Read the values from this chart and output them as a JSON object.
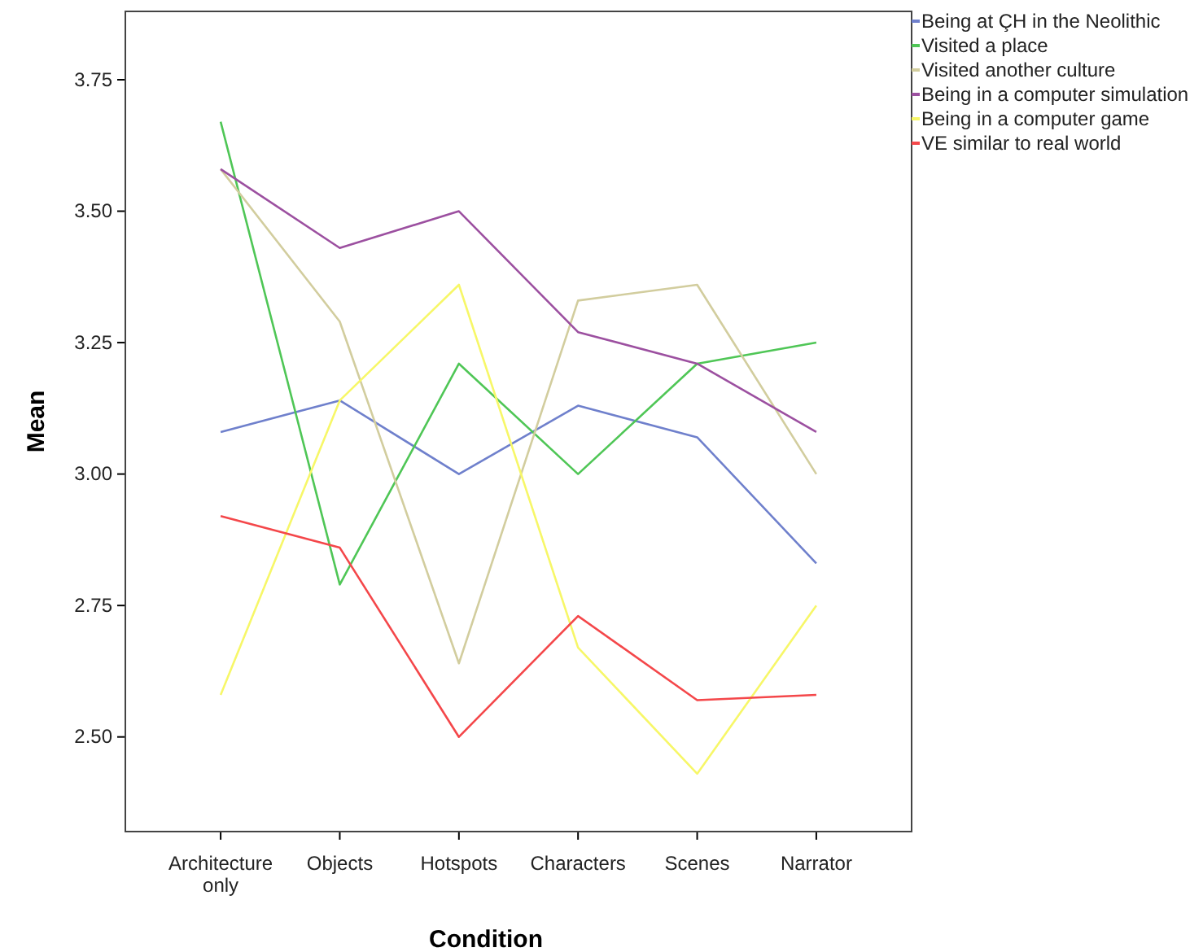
{
  "chart_data": {
    "type": "line",
    "xlabel": "Condition",
    "ylabel": "Mean",
    "categories": [
      "Architecture only",
      "Objects",
      "Hotspots",
      "Characters",
      "Scenes",
      "Narrator"
    ],
    "ylim": [
      2.32,
      3.88
    ],
    "yticks": [
      {
        "value": 2.5,
        "label": "2.50"
      },
      {
        "value": 2.75,
        "label": "2.75"
      },
      {
        "value": 3.0,
        "label": "3.00"
      },
      {
        "value": 3.25,
        "label": "3.25"
      },
      {
        "value": 3.5,
        "label": "3.50"
      },
      {
        "value": 3.75,
        "label": "3.75"
      }
    ],
    "grid": false,
    "legend": "right",
    "marker": "none",
    "line_style": "solid",
    "series": [
      {
        "name": "Being at ÇH in the Neolithic",
        "color": "#6f80cc",
        "values": [
          3.08,
          3.14,
          3.0,
          3.13,
          3.07,
          2.83
        ]
      },
      {
        "name": "Visited a place",
        "color": "#4fc656",
        "values": [
          3.67,
          2.79,
          3.21,
          3.0,
          3.21,
          3.25
        ]
      },
      {
        "name": "Visited another culture",
        "color": "#d2cd9e",
        "values": [
          3.58,
          3.29,
          2.64,
          3.33,
          3.36,
          3.0
        ]
      },
      {
        "name": "Being in a computer simulation",
        "color": "#9c50a0",
        "values": [
          3.58,
          3.43,
          3.5,
          3.27,
          3.21,
          3.08
        ]
      },
      {
        "name": "Being in a computer game",
        "color": "#f7f768",
        "values": [
          2.58,
          3.14,
          3.36,
          2.67,
          2.43,
          2.75
        ]
      },
      {
        "name": "VE similar to real world",
        "color": "#f4474a",
        "values": [
          2.92,
          2.86,
          2.5,
          2.73,
          2.57,
          2.58
        ]
      }
    ]
  }
}
